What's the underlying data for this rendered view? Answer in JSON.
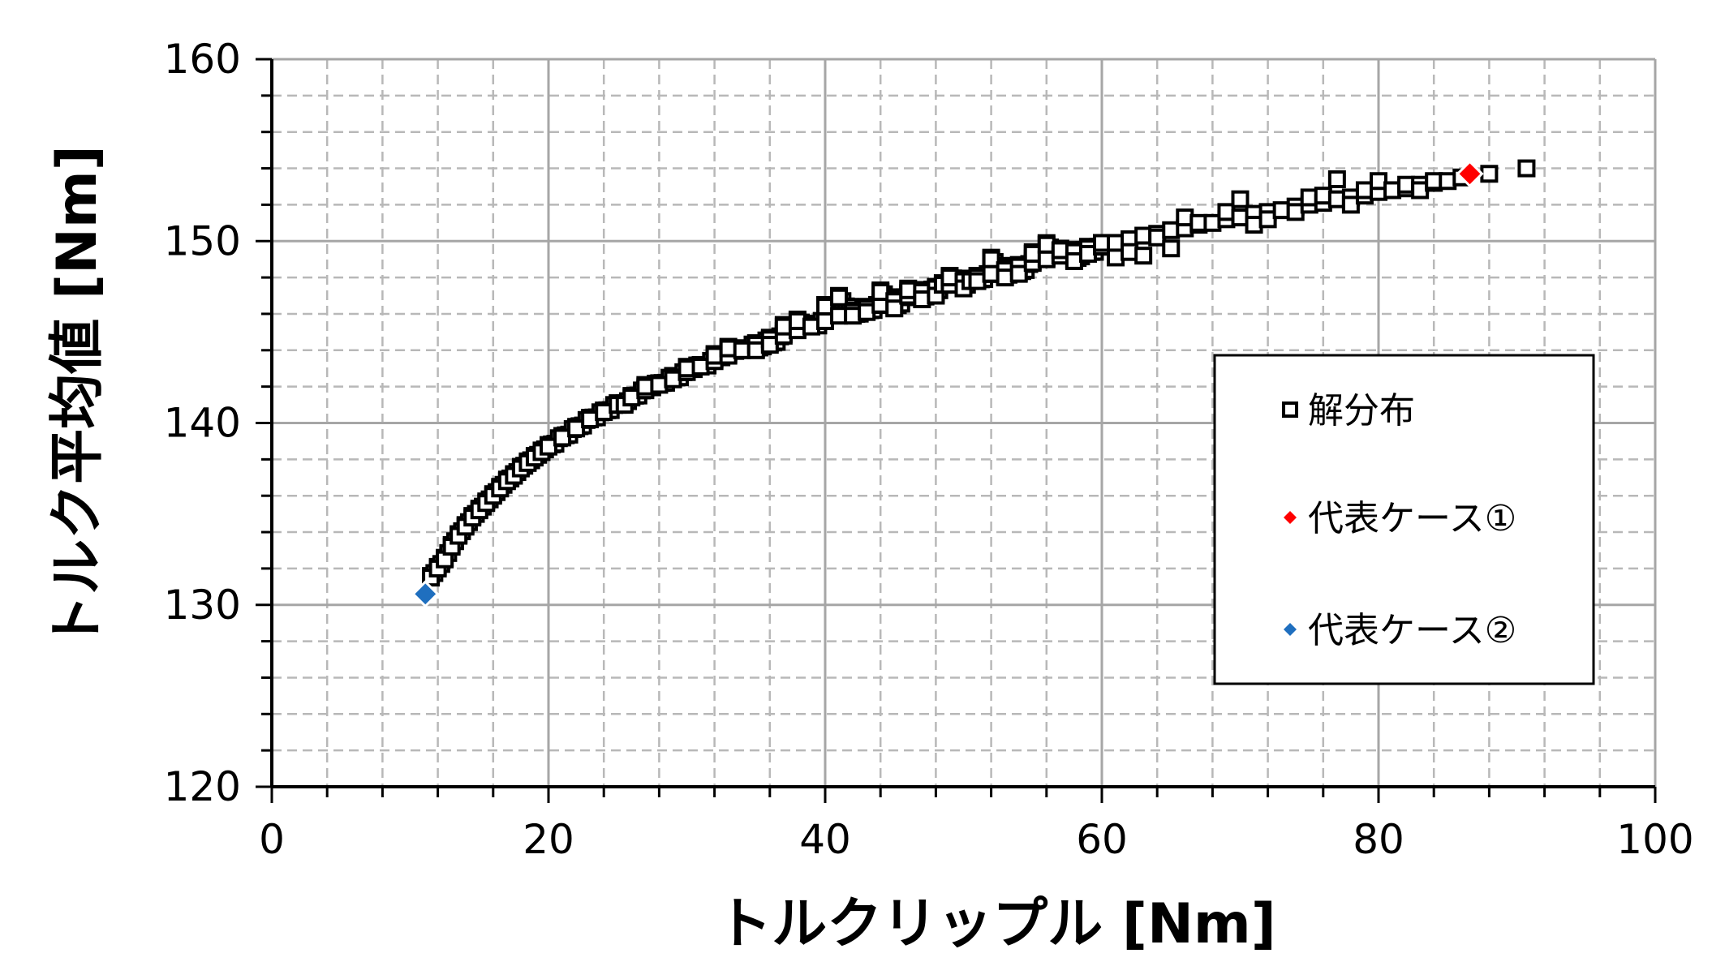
{
  "chart_data": {
    "type": "scatter",
    "title": "",
    "xlabel": "トルクリップル [Nm]",
    "ylabel": "トルク平均値 [Nm]",
    "xlim": [
      0,
      100
    ],
    "ylim": [
      120,
      160
    ],
    "x_major_step": 20,
    "x_minor_step": 4,
    "y_major_step": 10,
    "y_minor_step": 2,
    "x_ticks": [
      "0",
      "20",
      "40",
      "60",
      "80",
      "100"
    ],
    "y_ticks": [
      "120",
      "130",
      "140",
      "150",
      "160"
    ],
    "grid": true,
    "legend": {
      "placement": "inside-right",
      "entries": [
        "解分布",
        "代表ケース①",
        "代表ケース②"
      ]
    },
    "series": [
      {
        "name": "解分布",
        "marker": "hollow-square",
        "color": "#000000",
        "points": [
          [
            11.5,
            131.5
          ],
          [
            12,
            132
          ],
          [
            12.5,
            132.5
          ],
          [
            13,
            133.2
          ],
          [
            13.5,
            133.8
          ],
          [
            14,
            134.3
          ],
          [
            14.5,
            134.8
          ],
          [
            15,
            135.2
          ],
          [
            15.5,
            135.6
          ],
          [
            16,
            136
          ],
          [
            16.5,
            136.4
          ],
          [
            17,
            136.8
          ],
          [
            17.5,
            137.1
          ],
          [
            18,
            137.5
          ],
          [
            18.5,
            137.8
          ],
          [
            19,
            138.1
          ],
          [
            19.5,
            138.4
          ],
          [
            20,
            138.7
          ],
          [
            21,
            139.2
          ],
          [
            22,
            139.7
          ],
          [
            23,
            140.2
          ],
          [
            24,
            140.6
          ],
          [
            25,
            141
          ],
          [
            26,
            141.4
          ],
          [
            27,
            141.8
          ],
          [
            28,
            142.1
          ],
          [
            29,
            142.5
          ],
          [
            30,
            142.8
          ],
          [
            31,
            143.1
          ],
          [
            32,
            143.4
          ],
          [
            33,
            143.7
          ],
          [
            34,
            144
          ],
          [
            35,
            144.3
          ],
          [
            36,
            144.6
          ],
          [
            37,
            144.8
          ],
          [
            38,
            145.1
          ],
          [
            39,
            145.3
          ],
          [
            40,
            145.6
          ],
          [
            41,
            145.9
          ],
          [
            42,
            146.1
          ],
          [
            43,
            146.3
          ],
          [
            44,
            146.5
          ],
          [
            45,
            146.7
          ],
          [
            46,
            147
          ],
          [
            47,
            147.2
          ],
          [
            48,
            147.4
          ],
          [
            49,
            147.6
          ],
          [
            50,
            147.8
          ],
          [
            51,
            148
          ],
          [
            52,
            148.2
          ],
          [
            53,
            148.4
          ],
          [
            54,
            148.6
          ],
          [
            55,
            148.8
          ],
          [
            56,
            149
          ],
          [
            57,
            149.2
          ],
          [
            58,
            149.4
          ],
          [
            59,
            149.6
          ],
          [
            60,
            149.7
          ],
          [
            61,
            149.9
          ],
          [
            62,
            150.1
          ],
          [
            63,
            150.3
          ],
          [
            64,
            150.4
          ],
          [
            65,
            150.6
          ],
          [
            66,
            150.7
          ],
          [
            67,
            150.9
          ],
          [
            68,
            151
          ],
          [
            69,
            151.2
          ],
          [
            70,
            151.3
          ],
          [
            71,
            151.5
          ],
          [
            72,
            151.6
          ],
          [
            73,
            151.7
          ],
          [
            74,
            151.9
          ],
          [
            75,
            152
          ],
          [
            76,
            152.1
          ],
          [
            77,
            152.3
          ],
          [
            78,
            152.4
          ],
          [
            79,
            152.5
          ],
          [
            80,
            152.7
          ],
          [
            81,
            152.8
          ],
          [
            82,
            152.9
          ],
          [
            83,
            153.1
          ],
          [
            84,
            153.2
          ],
          [
            85,
            153.3
          ],
          [
            86,
            153.5
          ],
          [
            88,
            153.7
          ],
          [
            90.7,
            154
          ],
          [
            25.5,
            141
          ],
          [
            30,
            143
          ],
          [
            32,
            143.7
          ],
          [
            35,
            144
          ],
          [
            38,
            145.6
          ],
          [
            40,
            146.4
          ],
          [
            41,
            146.9
          ],
          [
            43,
            146.1
          ],
          [
            45,
            146.3
          ],
          [
            46,
            147.3
          ],
          [
            47,
            146.8
          ],
          [
            48,
            147
          ],
          [
            49,
            148
          ],
          [
            50,
            147.4
          ],
          [
            50.5,
            147.8
          ],
          [
            52,
            149
          ],
          [
            53,
            148
          ],
          [
            54,
            148.2
          ],
          [
            55,
            149.3
          ],
          [
            57,
            149.5
          ],
          [
            58,
            148.9
          ],
          [
            59,
            149.3
          ],
          [
            60,
            149.9
          ],
          [
            61,
            149.1
          ],
          [
            62,
            149.4
          ],
          [
            63,
            149.2
          ],
          [
            64,
            150.2
          ],
          [
            65,
            149.6
          ],
          [
            67,
            151
          ],
          [
            69,
            151.6
          ],
          [
            71,
            150.9
          ],
          [
            72,
            151.2
          ],
          [
            74,
            151.6
          ],
          [
            75,
            152.4
          ],
          [
            77,
            153.4
          ],
          [
            78,
            152
          ],
          [
            80,
            153.3
          ],
          [
            82,
            153.1
          ],
          [
            84,
            153.3
          ],
          [
            48.5,
            147.6
          ],
          [
            51,
            147.8
          ],
          [
            56,
            149.8
          ],
          [
            66,
            151.3
          ],
          [
            70,
            152.3
          ],
          [
            76,
            152.5
          ],
          [
            79,
            152.8
          ],
          [
            83,
            152.8
          ],
          [
            37,
            145.3
          ],
          [
            44,
            147.2
          ],
          [
            27,
            142
          ],
          [
            29,
            142.4
          ],
          [
            33,
            144.1
          ],
          [
            36,
            144.3
          ],
          [
            42,
            145.9
          ]
        ]
      },
      {
        "name": "代表ケース①",
        "marker": "diamond",
        "color": "#ff0000",
        "points": [
          [
            86.6,
            153.7
          ]
        ]
      },
      {
        "name": "代表ケース②",
        "marker": "diamond",
        "color": "#1f6fbf",
        "points": [
          [
            11.1,
            130.6
          ]
        ]
      }
    ]
  }
}
